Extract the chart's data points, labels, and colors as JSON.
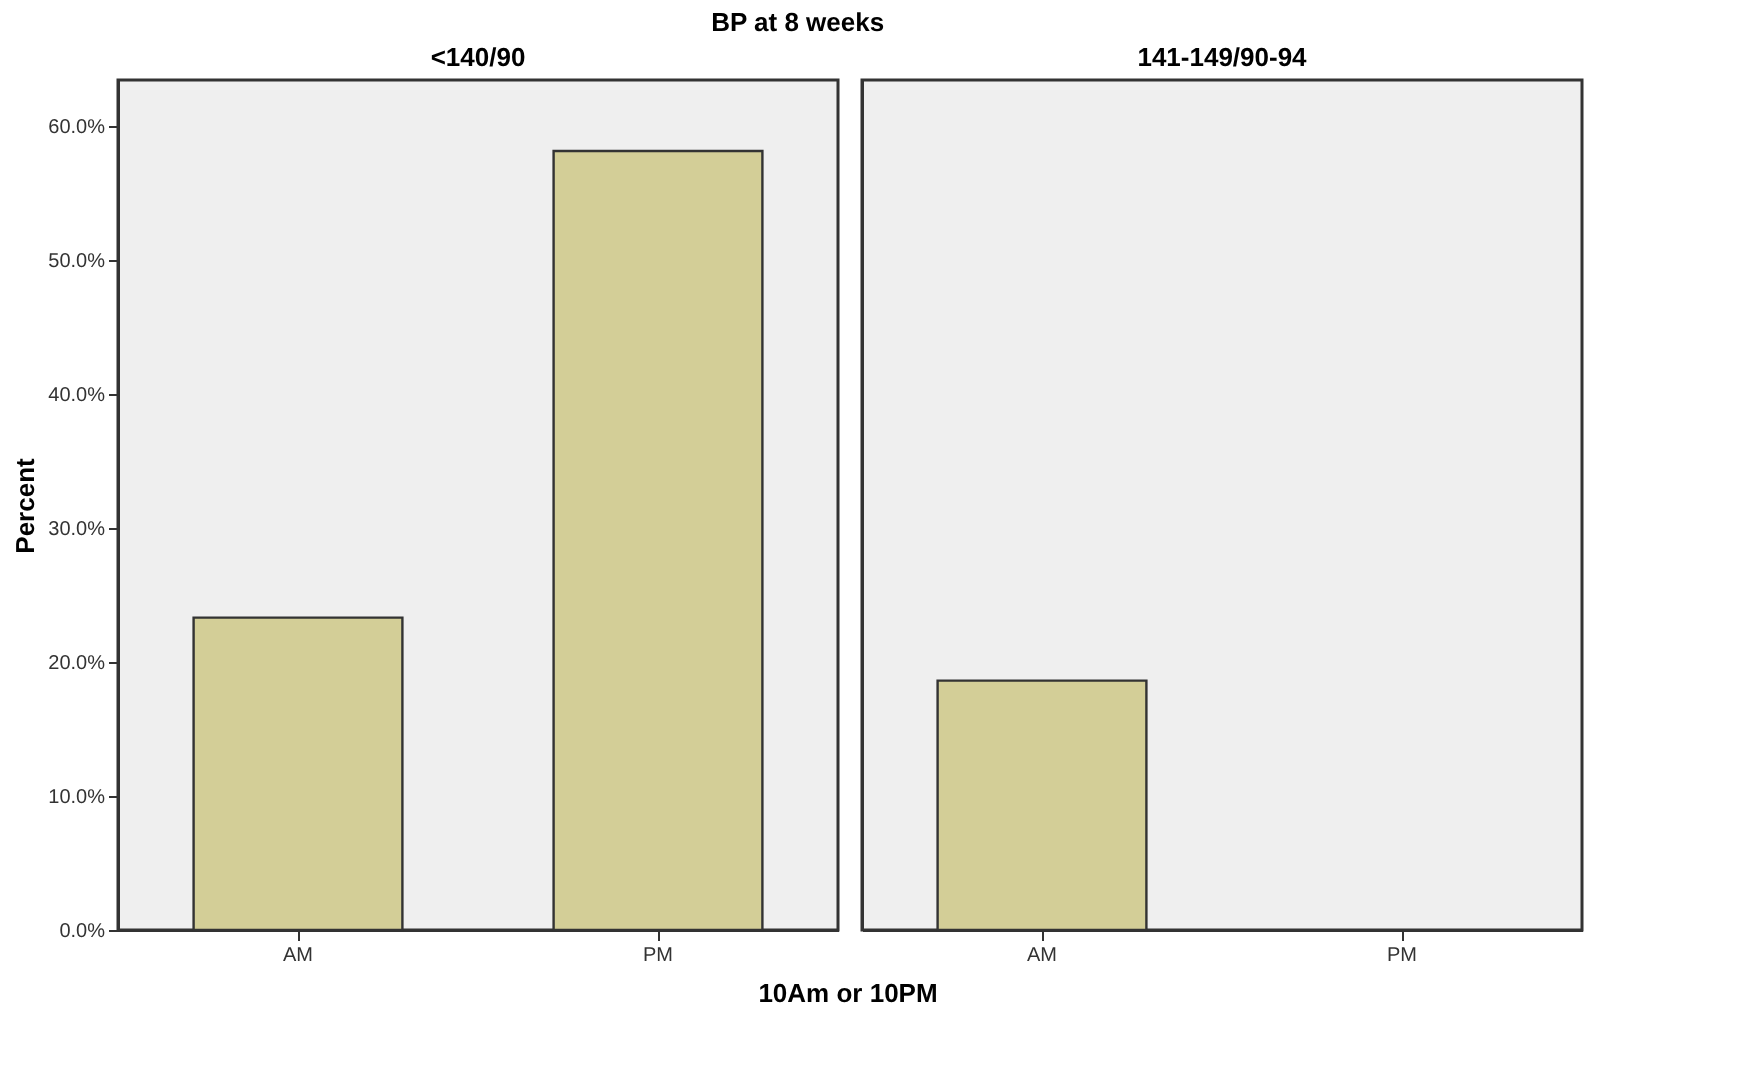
{
  "chart_data": [
    {
      "type": "bar",
      "title": "<140/90",
      "annotations": [
        "BP at 8 weeks"
      ],
      "xlabel": "10Am or 10PM",
      "ylabel": "Percent",
      "categories": [
        "AM",
        "PM"
      ],
      "values": [
        23.3,
        58.1
      ],
      "color": "#d3ce97",
      "ylim": [
        0,
        63.4
      ],
      "yticks": [
        {
          "value": 0,
          "label": "0.0%"
        },
        {
          "value": 10,
          "label": "10.0%"
        },
        {
          "value": 20,
          "label": "20.0%"
        },
        {
          "value": 30,
          "label": "30.0%"
        },
        {
          "value": 40,
          "label": "40.0%"
        },
        {
          "value": 50,
          "label": "50.0%"
        },
        {
          "value": 60,
          "label": "60.0%"
        }
      ],
      "grid": false
    },
    {
      "type": "bar",
      "title": "141-149/90-94",
      "categories": [
        "AM",
        "PM"
      ],
      "values": [
        18.6,
        null
      ],
      "color": "#d3ce97",
      "ylim": [
        0,
        63.4
      ],
      "grid": false,
      "tick_labels": "x"
    }
  ]
}
